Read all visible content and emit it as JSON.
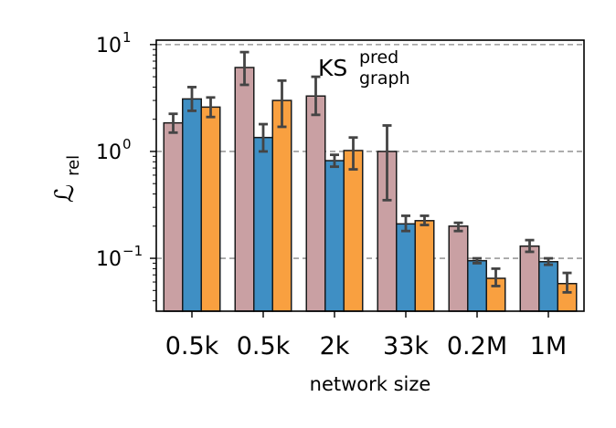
{
  "chart_data": {
    "type": "bar",
    "yscale": "log",
    "ylim": [
      0.032,
      11
    ],
    "categories": [
      "0.5k",
      "0.5k",
      "2k",
      "33k",
      "0.2M",
      "1M"
    ],
    "xlabel": "network size",
    "ylabel": "ℒ",
    "ylabel_sub": "rel",
    "annotation": {
      "base": "KS",
      "sup": "pred",
      "sub": "graph"
    },
    "yticks": [
      {
        "value": 0.1,
        "base": "10",
        "exp": "−1"
      },
      {
        "value": 1,
        "base": "10",
        "exp": "0"
      },
      {
        "value": 10,
        "base": "10",
        "exp": "1"
      }
    ],
    "grid": "horizontal-dashed",
    "series": [
      {
        "color": "#c9a0a3",
        "values": [
          1.85,
          6.1,
          3.3,
          1.0,
          0.2,
          0.13
        ],
        "err_low": [
          1.5,
          4.2,
          2.2,
          0.35,
          0.18,
          0.115
        ],
        "err_high": [
          2.25,
          8.5,
          5.0,
          1.75,
          0.215,
          0.148
        ]
      },
      {
        "color": "#3f8fc4",
        "values": [
          3.1,
          1.35,
          0.82,
          0.21,
          0.095,
          0.093
        ],
        "err_low": [
          2.4,
          1.0,
          0.72,
          0.18,
          0.09,
          0.087
        ],
        "err_high": [
          4.0,
          1.8,
          0.93,
          0.25,
          0.1,
          0.1
        ]
      },
      {
        "color": "#f9a040",
        "values": [
          2.6,
          3.0,
          1.02,
          0.225,
          0.065,
          0.058
        ],
        "err_low": [
          2.1,
          1.7,
          0.68,
          0.205,
          0.055,
          0.048
        ],
        "err_high": [
          3.2,
          4.6,
          1.35,
          0.25,
          0.08,
          0.073
        ]
      }
    ]
  }
}
